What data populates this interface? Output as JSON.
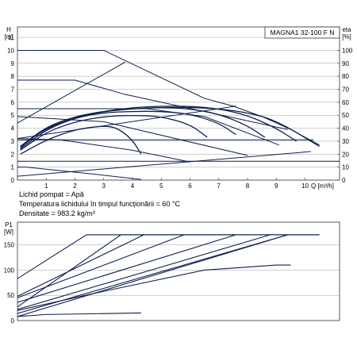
{
  "chart_data": [
    {
      "type": "line",
      "title": "MAGNA1 32-100 F N",
      "ylabel_unit": "H\n[m]",
      "y2label": "eta\n[%]",
      "xlabel": "Q [m³/h]",
      "xlim": [
        0,
        11.2
      ],
      "ylim": [
        0,
        11.8
      ],
      "y2lim": [
        0,
        118
      ],
      "xticks": [
        0,
        1,
        2,
        3,
        4,
        5,
        6,
        7,
        8,
        9,
        10
      ],
      "yticks": [
        0,
        1,
        2,
        3,
        4,
        5,
        6,
        7,
        8,
        9,
        10,
        11
      ],
      "y2ticks": [
        0,
        10,
        20,
        30,
        40,
        50,
        60,
        70,
        80,
        90,
        100
      ],
      "grid": "horizontal",
      "series": [
        {
          "role": "head",
          "x": [
            0,
            3.0,
            6.5,
            7.5,
            8.5,
            9.5,
            10.5
          ],
          "y": [
            10,
            10,
            6.3,
            5.7,
            4.9,
            3.9,
            2.7
          ]
        },
        {
          "role": "head",
          "x": [
            0,
            2.0,
            3.75,
            9.4
          ],
          "y": [
            7.7,
            7.7,
            6.6,
            3.9
          ]
        },
        {
          "role": "head",
          "x": [
            0,
            4.5,
            6.5,
            9.1
          ],
          "y": [
            5.5,
            5.5,
            4.9,
            2.7
          ]
        },
        {
          "role": "head",
          "x": [
            0,
            3.0,
            8.0
          ],
          "y": [
            4.9,
            4.5,
            1.9
          ]
        },
        {
          "role": "head",
          "x": [
            0,
            1.5,
            4.0,
            6.0
          ],
          "y": [
            3.2,
            3.1,
            2.3,
            1.4
          ]
        },
        {
          "role": "head",
          "x": [
            0,
            0.3,
            2.5,
            4.3
          ],
          "y": [
            1.0,
            1.0,
            0.5,
            0.05
          ]
        },
        {
          "role": "control",
          "x": [
            0,
            7.6
          ],
          "y": [
            3.2,
            5.7
          ]
        },
        {
          "role": "control",
          "x": [
            0,
            3.75
          ],
          "y": [
            4.4,
            9.1
          ]
        },
        {
          "role": "control",
          "x": [
            0,
            10.2
          ],
          "y": [
            0.3,
            2.2
          ]
        },
        {
          "role": "control",
          "x": [
            0,
            10.3
          ],
          "y": [
            3.1,
            3.1
          ]
        },
        {
          "role": "control",
          "x": [
            0,
            11.2
          ],
          "y": [
            1.45,
            1.45
          ]
        },
        {
          "role": "efficiency",
          "x": [
            0.1,
            1.0,
            2.0,
            3.0,
            4.0,
            5.0,
            6.0,
            7.0,
            8.0,
            9.0,
            10.5
          ],
          "y": [
            2.6,
            4.0,
            4.8,
            5.3,
            5.5,
            5.6,
            5.6,
            5.5,
            5.2,
            4.6,
            2.6
          ]
        },
        {
          "role": "efficiency",
          "x": [
            0.1,
            1.0,
            2.0,
            3.0,
            4.0,
            5.0,
            6.0,
            7.0,
            8.0,
            9.0,
            9.7
          ],
          "y": [
            2.6,
            4.1,
            4.9,
            5.3,
            5.6,
            5.7,
            5.7,
            5.5,
            5.0,
            4.0,
            3.0
          ]
        },
        {
          "role": "efficiency",
          "x": [
            0.1,
            1.0,
            2.0,
            3.0,
            4.0,
            5.0,
            6.0,
            7.0,
            8.0,
            8.6
          ],
          "y": [
            2.5,
            4.1,
            4.9,
            5.3,
            5.5,
            5.6,
            5.5,
            5.1,
            4.2,
            3.3
          ]
        },
        {
          "role": "efficiency",
          "x": [
            0.1,
            1.0,
            2.0,
            3.0,
            4.0,
            5.0,
            6.0,
            7.0,
            7.6
          ],
          "y": [
            2.4,
            3.9,
            4.8,
            5.2,
            5.3,
            5.3,
            5.1,
            4.4,
            3.5
          ]
        },
        {
          "role": "efficiency",
          "x": [
            0.1,
            1.0,
            2.0,
            3.0,
            4.0,
            5.0,
            6.0,
            6.6
          ],
          "y": [
            2.3,
            3.7,
            4.5,
            4.9,
            5.0,
            4.9,
            4.3,
            3.3
          ]
        },
        {
          "role": "efficiency",
          "x": [
            0.1,
            1.0,
            2.0,
            3.0,
            3.5,
            4.0,
            4.3
          ],
          "y": [
            2.0,
            3.1,
            3.9,
            4.2,
            4.0,
            3.1,
            2.0
          ]
        }
      ]
    },
    {
      "type": "line",
      "ylabel_unit": "P1\n[W]",
      "xlim": [
        0,
        11.2
      ],
      "ylim": [
        0,
        195
      ],
      "yticks": [
        0,
        50,
        100,
        150
      ],
      "grid": "horizontal",
      "series": [
        {
          "x": [
            0,
            2.4,
            10.5
          ],
          "y": [
            83,
            170,
            170
          ]
        },
        {
          "x": [
            0,
            3.6,
            10.5
          ],
          "y": [
            27,
            170,
            170
          ]
        },
        {
          "x": [
            0,
            4.4
          ],
          "y": [
            48,
            170
          ]
        },
        {
          "x": [
            0,
            5.8
          ],
          "y": [
            45,
            170
          ]
        },
        {
          "x": [
            0,
            7.6
          ],
          "y": [
            36,
            170
          ]
        },
        {
          "x": [
            0,
            8.8
          ],
          "y": [
            22,
            170
          ]
        },
        {
          "x": [
            0,
            9.4
          ],
          "y": [
            14,
            170
          ]
        },
        {
          "x": [
            0,
            3.0,
            6.5,
            9.0,
            9.5
          ],
          "y": [
            20,
            58,
            100,
            110,
            110
          ]
        },
        {
          "x": [
            0,
            1.0,
            4.3
          ],
          "y": [
            8,
            12,
            15
          ]
        },
        {
          "x": [
            0,
            9.4
          ],
          "y": [
            8,
            170
          ]
        }
      ]
    }
  ],
  "legend_text": {
    "medium": "Lichid pompat = Apă",
    "temperature": "Temperatura lichidului în timpul funcționării = 60 °C",
    "density": "Densitate = 983.2 kg/m³"
  },
  "colors": {
    "line": "#0d1f4d",
    "axis": "#333333",
    "grid": "#888888"
  }
}
